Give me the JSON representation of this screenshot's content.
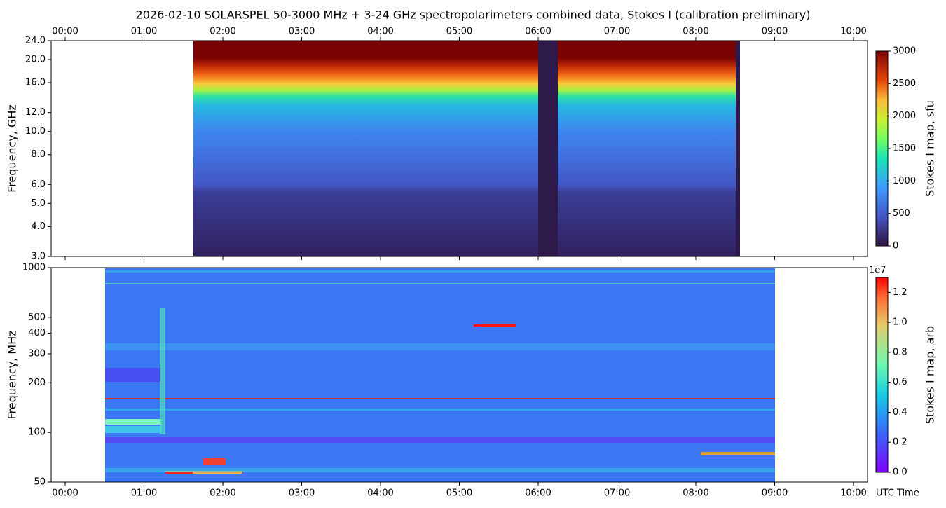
{
  "chart_data": [
    {
      "type": "heatmap",
      "title": "2026-02-10  SOLARSPEL  50-3000 MHz  +  3-24 GHz  spectropolarimeters combined data,  Stokes I  (calibration preliminary)",
      "ylabel": "Frequency, GHz",
      "yscale": "log",
      "ylim": [
        3,
        24
      ],
      "yticks": [
        {
          "value": 3,
          "label": "3.0"
        },
        {
          "value": 4,
          "label": "4.0"
        },
        {
          "value": 5,
          "label": "5.0"
        },
        {
          "value": 6,
          "label": "6.0"
        },
        {
          "value": 8,
          "label": "8.0"
        },
        {
          "value": 10,
          "label": "10.0"
        },
        {
          "value": 12,
          "label": "12.0"
        },
        {
          "value": 16,
          "label": "16.0"
        },
        {
          "value": 20,
          "label": "20.0"
        },
        {
          "value": 24,
          "label": "24.0"
        }
      ],
      "xlim": [
        -0.1778,
        10.1778
      ],
      "xticks": [
        {
          "value": 0,
          "label": "00:00"
        },
        {
          "value": 1,
          "label": "01:00"
        },
        {
          "value": 2,
          "label": "02:00"
        },
        {
          "value": 3,
          "label": "03:00"
        },
        {
          "value": 4,
          "label": "04:00"
        },
        {
          "value": 5,
          "label": "05:00"
        },
        {
          "value": 6,
          "label": "06:00"
        },
        {
          "value": 7,
          "label": "07:00"
        },
        {
          "value": 8,
          "label": "08:00"
        },
        {
          "value": 9,
          "label": "09:00"
        },
        {
          "value": 10,
          "label": "10:00"
        }
      ],
      "xaxis_position": "top",
      "colorbar": {
        "label": "Stokes I map, sfu",
        "lim": [
          0,
          3000
        ],
        "ticks": [
          0,
          500,
          1000,
          1500,
          2000,
          2500,
          3000
        ],
        "colormap": "turbo"
      }
    },
    {
      "type": "heatmap",
      "ylabel": "Frequency, MHz",
      "yscale": "log",
      "ylim": [
        50,
        1000
      ],
      "yticks": [
        50,
        100,
        200,
        300,
        400,
        500,
        1000
      ],
      "xlim": [
        -0.1778,
        10.1778
      ],
      "xticks": [
        {
          "value": 0,
          "label": "00:00"
        },
        {
          "value": 1,
          "label": "01:00"
        },
        {
          "value": 2,
          "label": "02:00"
        },
        {
          "value": 3,
          "label": "03:00"
        },
        {
          "value": 4,
          "label": "04:00"
        },
        {
          "value": 5,
          "label": "05:00"
        },
        {
          "value": 6,
          "label": "06:00"
        },
        {
          "value": 7,
          "label": "07:00"
        },
        {
          "value": 8,
          "label": "08:00"
        },
        {
          "value": 9,
          "label": "09:00"
        },
        {
          "value": 10,
          "label": "10:00"
        }
      ],
      "xaxis_position": "bottom",
      "xlabel": "UTC Time",
      "colorbar": {
        "label": "Stokes I map, arb",
        "offset_text": "1e7",
        "lim": [
          0,
          1.3
        ],
        "ticks": [
          {
            "value": 0,
            "label": "0.0"
          },
          {
            "value": 0.2,
            "label": "0.2"
          },
          {
            "value": 0.4,
            "label": "0.4"
          },
          {
            "value": 0.6,
            "label": "0.6"
          },
          {
            "value": 0.8,
            "label": "0.8"
          },
          {
            "value": 1,
            "label": "1.0"
          },
          {
            "value": 1.2,
            "label": "1.2"
          }
        ],
        "colormap": "rainbow"
      }
    }
  ]
}
